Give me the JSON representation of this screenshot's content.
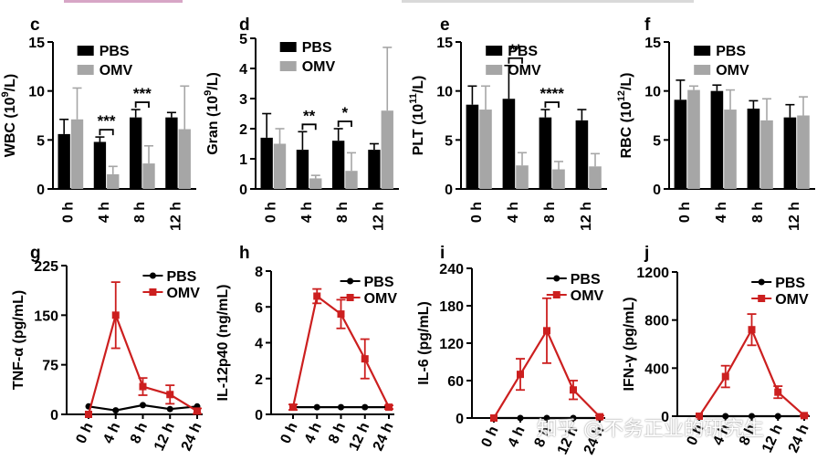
{
  "colors": {
    "pbs_bar": "#000000",
    "omv_bar": "#a6a6a6",
    "pbs_line": "#000000",
    "omv_line": "#cc1f1f"
  },
  "watermark": "知乎 @不务正业的研究生",
  "chart_data": [
    {
      "id": "c",
      "type": "bar",
      "letter": "c",
      "ylabel_main": "WBC (10",
      "ylabel_sup": "9",
      "ylabel_end": "/L)",
      "ylim": [
        0,
        15
      ],
      "yticks": [
        "0",
        "5",
        "10",
        "15"
      ],
      "categories": [
        "0 h",
        "4 h",
        "8 h",
        "12 h"
      ],
      "series": [
        {
          "name": "PBS",
          "values": [
            5.6,
            4.8,
            7.3,
            7.3
          ],
          "errors": [
            1.5,
            0.5,
            0.8,
            0.5
          ]
        },
        {
          "name": "OMV",
          "values": [
            7.1,
            1.5,
            2.6,
            6.1
          ],
          "errors": [
            3.2,
            0.8,
            1.8,
            4.4
          ]
        }
      ],
      "significance": [
        {
          "category": 1,
          "label": "***"
        },
        {
          "category": 2,
          "label": "***"
        }
      ],
      "legend": "top-right"
    },
    {
      "id": "d",
      "type": "bar",
      "letter": "d",
      "ylabel_main": "Gran (10",
      "ylabel_sup": "9",
      "ylabel_end": "/L)",
      "ylim": [
        0,
        5
      ],
      "yticks": [
        "0",
        "1",
        "2",
        "3",
        "4",
        "5"
      ],
      "categories": [
        "0 h",
        "4 h",
        "8 h",
        "12 h"
      ],
      "series": [
        {
          "name": "PBS",
          "values": [
            1.7,
            1.3,
            1.6,
            1.3
          ],
          "errors": [
            0.8,
            0.6,
            0.4,
            0.2
          ]
        },
        {
          "name": "OMV",
          "values": [
            1.5,
            0.35,
            0.6,
            2.6
          ],
          "errors": [
            0.5,
            0.1,
            0.6,
            2.1
          ]
        }
      ],
      "significance": [
        {
          "category": 1,
          "label": "**"
        },
        {
          "category": 2,
          "label": "*"
        }
      ],
      "legend": "top-right"
    },
    {
      "id": "e",
      "type": "bar",
      "letter": "e",
      "ylabel_main": "PLT (10",
      "ylabel_sup": "11",
      "ylabel_end": "/L)",
      "ylim": [
        0,
        15
      ],
      "yticks": [
        "0",
        "5",
        "10",
        "15"
      ],
      "categories": [
        "0 h",
        "4 h",
        "8 h",
        "12 h"
      ],
      "series": [
        {
          "name": "PBS",
          "values": [
            8.6,
            9.2,
            7.3,
            7.0
          ],
          "errors": [
            1.9,
            3.4,
            0.8,
            1.1
          ]
        },
        {
          "name": "OMV",
          "values": [
            8.1,
            2.4,
            2.0,
            2.3
          ],
          "errors": [
            2.4,
            1.3,
            0.8,
            1.3
          ]
        }
      ],
      "significance": [
        {
          "category": 1,
          "label": "**"
        },
        {
          "category": 2,
          "label": "****"
        }
      ],
      "legend": "top-right"
    },
    {
      "id": "f",
      "type": "bar",
      "letter": "f",
      "ylabel_main": "RBC (10",
      "ylabel_sup": "12",
      "ylabel_end": "/L)",
      "ylim": [
        0,
        15
      ],
      "yticks": [
        "0",
        "5",
        "10",
        "15"
      ],
      "categories": [
        "0 h",
        "4 h",
        "8 h",
        "12 h"
      ],
      "series": [
        {
          "name": "PBS",
          "values": [
            9.1,
            10.0,
            8.2,
            7.3
          ],
          "errors": [
            2.0,
            0.6,
            0.8,
            1.3
          ]
        },
        {
          "name": "OMV",
          "values": [
            10.1,
            8.1,
            7.0,
            7.5
          ],
          "errors": [
            0.4,
            2.0,
            2.2,
            1.9
          ]
        }
      ],
      "significance": [],
      "legend": "top-right"
    },
    {
      "id": "g",
      "type": "line",
      "letter": "g",
      "ylabel": "TNF-α (pg/mL)",
      "ylim": [
        0,
        225
      ],
      "yticks": [
        "0",
        "75",
        "150",
        "225"
      ],
      "categories": [
        "0 h",
        "4 h",
        "8 h",
        "12 h",
        "24 h"
      ],
      "series": [
        {
          "name": "PBS",
          "values": [
            12,
            6,
            14,
            8,
            12
          ],
          "errors": [
            0,
            0,
            0,
            0,
            0
          ]
        },
        {
          "name": "OMV",
          "values": [
            0,
            150,
            42,
            30,
            5
          ],
          "errors": [
            0,
            50,
            13,
            14,
            4
          ]
        }
      ],
      "legend": "top-right"
    },
    {
      "id": "h",
      "type": "line",
      "letter": "h",
      "ylabel": "IL-12p40 (ng/mL)",
      "ylim": [
        0,
        8
      ],
      "yticks": [
        "0",
        "2",
        "4",
        "6",
        "8"
      ],
      "categories": [
        "0 h",
        "4 h",
        "8 h",
        "12 h",
        "24 h"
      ],
      "series": [
        {
          "name": "PBS",
          "values": [
            0.4,
            0.4,
            0.4,
            0.4,
            0.4
          ],
          "errors": [
            0,
            0,
            0,
            0,
            0
          ]
        },
        {
          "name": "OMV",
          "values": [
            0.4,
            6.6,
            5.6,
            3.1,
            0.4
          ],
          "errors": [
            0.15,
            0.4,
            0.8,
            1.1,
            0.1
          ]
        }
      ],
      "legend": "top-right"
    },
    {
      "id": "i",
      "type": "line",
      "letter": "i",
      "ylabel": "IL-6 (pg/mL)",
      "ylim": [
        0,
        240
      ],
      "yticks": [
        "0",
        "60",
        "120",
        "180",
        "240"
      ],
      "categories": [
        "0 h",
        "4 h",
        "8 h",
        "12 h",
        "24 h"
      ],
      "series": [
        {
          "name": "PBS",
          "values": [
            0,
            0,
            0,
            0,
            0
          ],
          "errors": [
            0,
            0,
            0,
            0,
            0
          ]
        },
        {
          "name": "OMV",
          "values": [
            0,
            70,
            140,
            45,
            2
          ],
          "errors": [
            0,
            25,
            52,
            15,
            2
          ]
        }
      ],
      "legend": "top-right"
    },
    {
      "id": "j",
      "type": "line",
      "letter": "j",
      "ylabel": "IFN-γ (pg/mL)",
      "ylim": [
        0,
        1200
      ],
      "yticks": [
        "0",
        "400",
        "800",
        "1200"
      ],
      "categories": [
        "0 h",
        "4 h",
        "8 h",
        "12 h",
        "24 h"
      ],
      "series": [
        {
          "name": "PBS",
          "values": [
            0,
            0,
            0,
            0,
            0
          ],
          "errors": [
            0,
            0,
            0,
            0,
            0
          ]
        },
        {
          "name": "OMV",
          "values": [
            0,
            330,
            720,
            200,
            5
          ],
          "errors": [
            0,
            90,
            130,
            50,
            5
          ]
        }
      ],
      "legend": "top-right"
    }
  ]
}
